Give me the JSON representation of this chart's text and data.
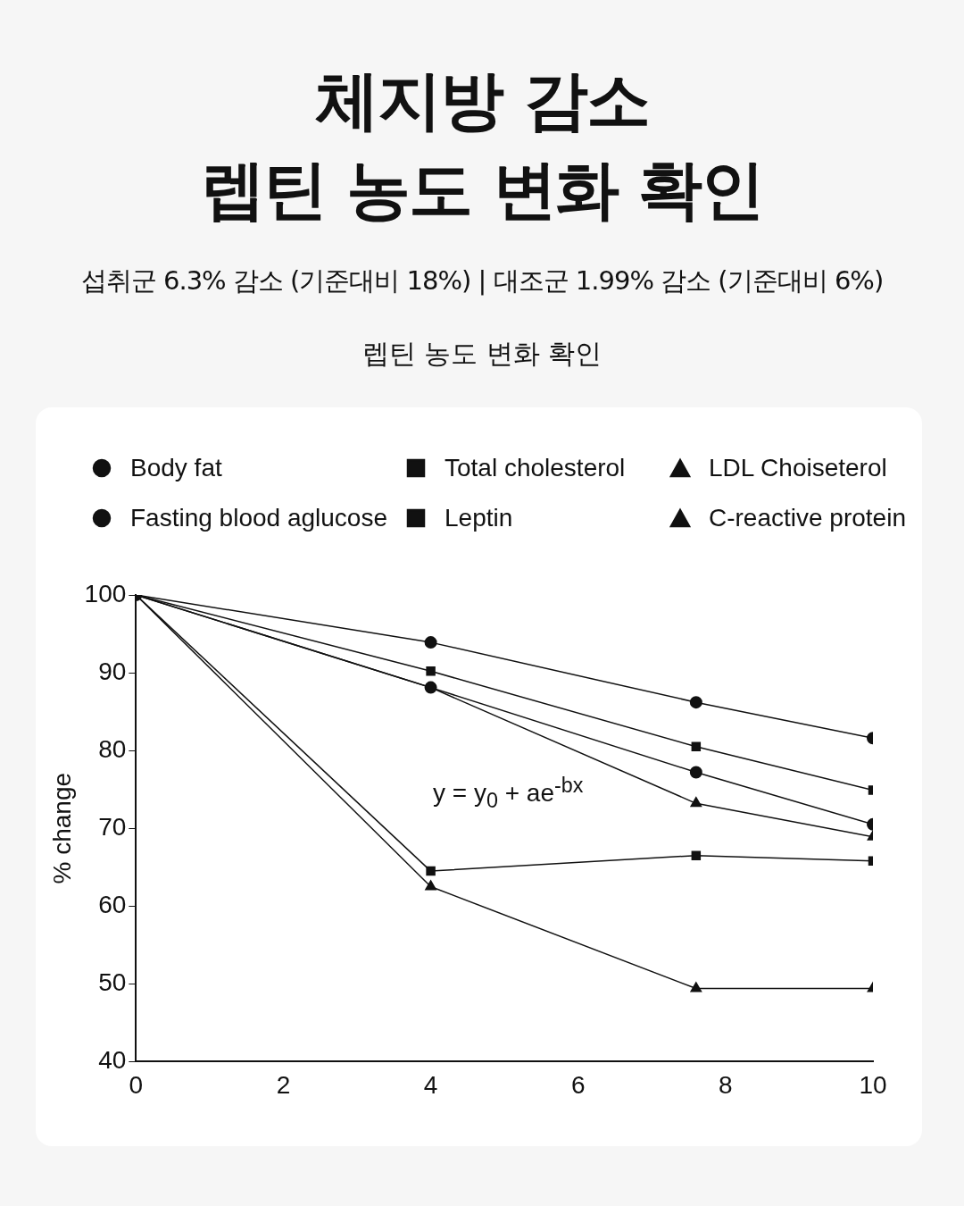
{
  "chart_data": {
    "type": "line",
    "title": "체지방 감소\n렙틴 농도 변화 확인",
    "subtitle": "섭취군 6.3% 감소 (기준대비 18%) | 대조군 1.99% 감소 (기준대비 6%)",
    "ylabel": "% change",
    "annotations": [
      "렙틴 농도 변화 확인",
      "y = y$_{0}$ + ae$^{-bx}$"
    ],
    "x": [
      0,
      4,
      7.6,
      10
    ],
    "xlim": [
      0,
      10
    ],
    "xticks": [
      0,
      2,
      4,
      6,
      8,
      10
    ],
    "ylim": [
      40,
      100
    ],
    "yticks": [
      40,
      50,
      60,
      70,
      80,
      90,
      100
    ],
    "grid": false,
    "legend": "top",
    "series": [
      {
        "name": "Body fat",
        "color": "#111111",
        "marker": "circle",
        "values": [
          100,
          93.9,
          86.2,
          81.6
        ]
      },
      {
        "name": "Fasting blood aglucose",
        "color": "#111111",
        "marker": "circle",
        "values": [
          100,
          88.1,
          77.2,
          70.5
        ]
      },
      {
        "name": "Total cholesterol",
        "color": "#111111",
        "marker": "square",
        "values": [
          100,
          90.2,
          80.5,
          74.9
        ]
      },
      {
        "name": "Leptin",
        "color": "#111111",
        "marker": "square",
        "values": [
          100,
          64.5,
          66.5,
          65.8
        ]
      },
      {
        "name": "LDL Choiseterol",
        "color": "#111111",
        "marker": "triangle",
        "values": [
          100,
          88.1,
          73.2,
          68.9
        ]
      },
      {
        "name": "C-reactive protein",
        "color": "#111111",
        "marker": "triangle",
        "values": [
          100,
          62.5,
          49.4,
          49.4
        ]
      }
    ]
  }
}
